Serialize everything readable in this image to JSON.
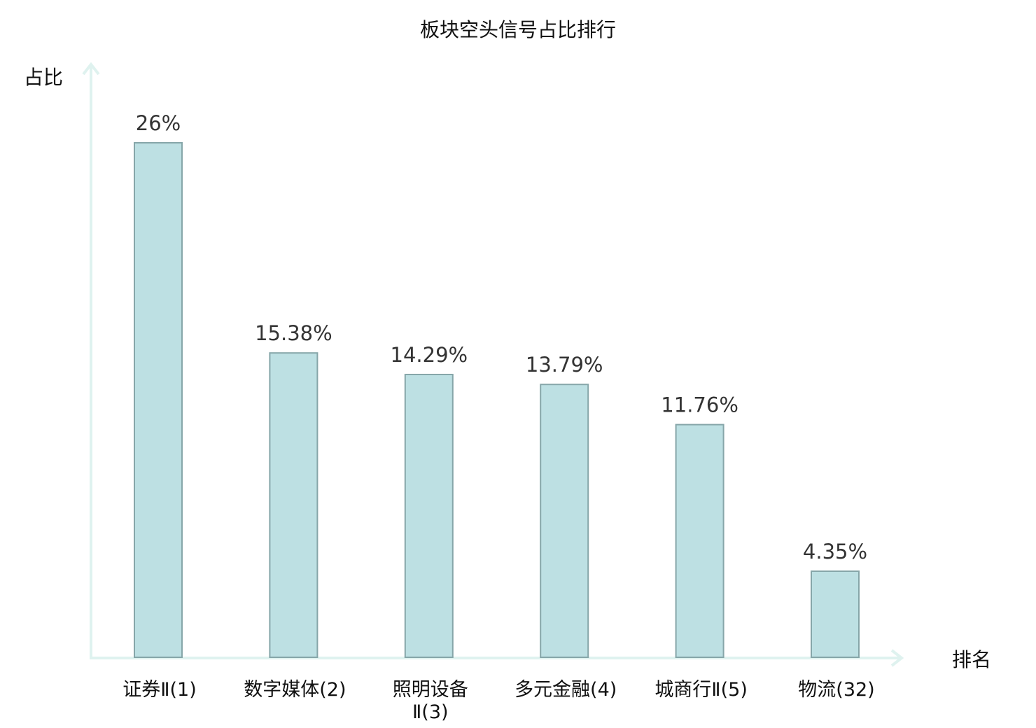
{
  "chart_data": {
    "type": "bar",
    "title": "板块空头信号占比排行",
    "ylabel": "占比",
    "xlabel": "排名",
    "categories": [
      "证券Ⅱ(1)",
      "数字媒体(2)",
      "照明设备Ⅱ(3)",
      "多元金融(4)",
      "城商行Ⅱ(5)",
      "物流(32)"
    ],
    "values": [
      26,
      15.38,
      14.29,
      13.79,
      11.76,
      4.35
    ],
    "value_labels": [
      "26%",
      "15.38%",
      "14.29%",
      "13.79%",
      "11.76%",
      "4.35%"
    ],
    "highlight_index": 5,
    "ylim": [
      0,
      30
    ],
    "grid": false,
    "legend": "none"
  },
  "colors": {
    "bar_fill": "#bde0e3",
    "bar_stroke": "#86a6a9",
    "axis": "#dff2ef",
    "highlight_text": "#e02020",
    "text": "#111111",
    "value_text": "#333333"
  }
}
